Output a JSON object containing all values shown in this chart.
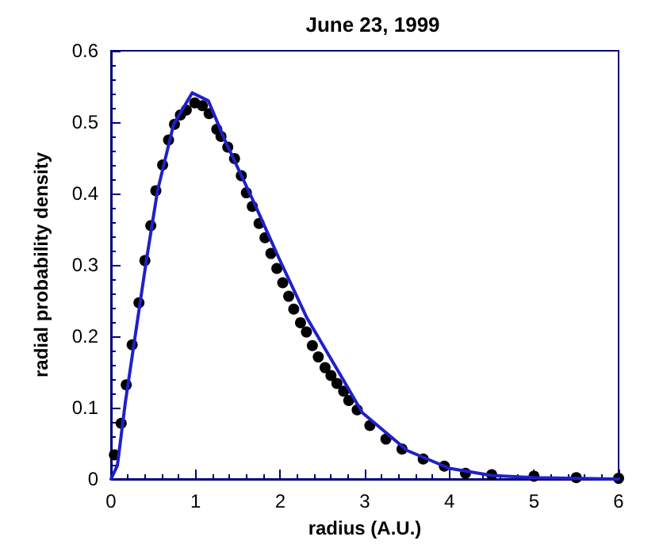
{
  "chart_data": {
    "type": "scatter",
    "title": "June 23, 1999",
    "xlabel": "radius (A.U.)",
    "ylabel": "radial probability density",
    "series": [
      {
        "color": "#000000",
        "marker": "circle",
        "x": [
          0.04,
          0.12,
          0.18,
          0.25,
          0.33,
          0.4,
          0.47,
          0.53,
          0.61,
          0.68,
          0.75,
          0.82,
          0.89,
          0.99,
          1.08,
          1.16,
          1.25,
          1.3,
          1.38,
          1.46,
          1.54,
          1.6,
          1.67,
          1.75,
          1.82,
          1.89,
          1.96,
          2.03,
          2.1,
          2.16,
          2.24,
          2.31,
          2.38,
          2.45,
          2.53,
          2.6,
          2.67,
          2.75,
          2.81,
          2.91,
          3.06,
          3.25,
          3.44,
          3.69,
          3.94,
          4.19,
          4.5,
          5.0,
          5.5,
          6.0
        ],
        "values": [
          0.034,
          0.078,
          0.132,
          0.188,
          0.247,
          0.306,
          0.355,
          0.404,
          0.44,
          0.475,
          0.497,
          0.51,
          0.517,
          0.527,
          0.523,
          0.512,
          0.49,
          0.48,
          0.465,
          0.449,
          0.425,
          0.401,
          0.382,
          0.358,
          0.338,
          0.316,
          0.295,
          0.275,
          0.256,
          0.238,
          0.219,
          0.206,
          0.187,
          0.171,
          0.156,
          0.145,
          0.134,
          0.123,
          0.11,
          0.097,
          0.075,
          0.056,
          0.042,
          0.028,
          0.018,
          0.008,
          0.006,
          0.004,
          0.002,
          0.001
        ]
      },
      {
        "type": "line",
        "color": "#2020c8",
        "marker": "none",
        "line_style": "solid",
        "x": [
          0,
          0.075,
          0.17,
          0.3,
          0.42,
          0.55,
          0.74,
          0.96,
          1.15,
          1.36,
          1.68,
          1.99,
          2.31,
          2.75,
          2.97,
          3.5,
          4.0,
          4.5,
          5.0,
          6.0
        ],
        "values": [
          0,
          0.019,
          0.108,
          0.212,
          0.308,
          0.404,
          0.497,
          0.541,
          0.53,
          0.471,
          0.39,
          0.308,
          0.227,
          0.138,
          0.093,
          0.04,
          0.015,
          0.005,
          0.002,
          0
        ]
      }
    ],
    "xlim": [
      0,
      6
    ],
    "xticks": [
      0,
      1,
      2,
      3,
      4,
      5,
      6
    ],
    "ylim": [
      0,
      0.6
    ],
    "yticks": [
      0,
      0.1,
      0.2,
      0.3,
      0.4,
      0.5,
      0.6
    ],
    "grid": false
  }
}
